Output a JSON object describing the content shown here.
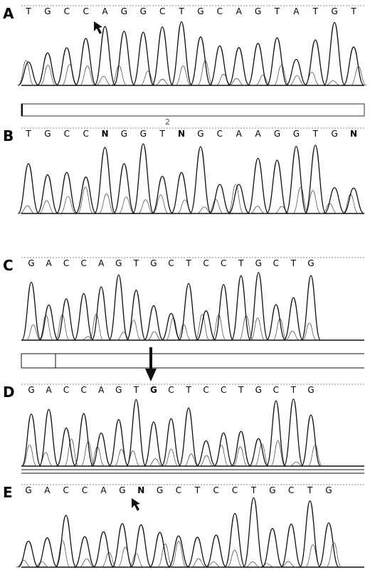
{
  "panels": [
    {
      "label": "A",
      "bases": [
        "T",
        "G",
        "C",
        "C",
        "A",
        "G",
        "G",
        "C",
        "T",
        "G",
        "C",
        "A",
        "G",
        "T",
        "A",
        "T",
        "G",
        "T"
      ]
    },
    {
      "label": "B",
      "bases": [
        "T",
        "G",
        "C",
        "C",
        "N",
        "G",
        "G",
        "T",
        "N",
        "G",
        "C",
        "A",
        "A",
        "G",
        "G",
        "T",
        "G",
        "N"
      ]
    },
    {
      "label": "C",
      "bases": [
        "G",
        "A",
        "C",
        "C",
        "A",
        "G",
        "T",
        "G",
        "C",
        "T",
        "C",
        "C",
        "T",
        "G",
        "C",
        "T",
        "G"
      ]
    },
    {
      "label": "D",
      "bases": [
        "G",
        "A",
        "C",
        "C",
        "A",
        "G",
        "T",
        "G",
        "C",
        "T",
        "C",
        "C",
        "T",
        "G",
        "C",
        "T",
        "G"
      ]
    },
    {
      "label": "E",
      "bases": [
        "G",
        "A",
        "C",
        "C",
        "A",
        "G",
        "N",
        "G",
        "C",
        "T",
        "C",
        "C",
        "T",
        "G",
        "C",
        "T",
        "G"
      ]
    }
  ],
  "track_label": "2"
}
